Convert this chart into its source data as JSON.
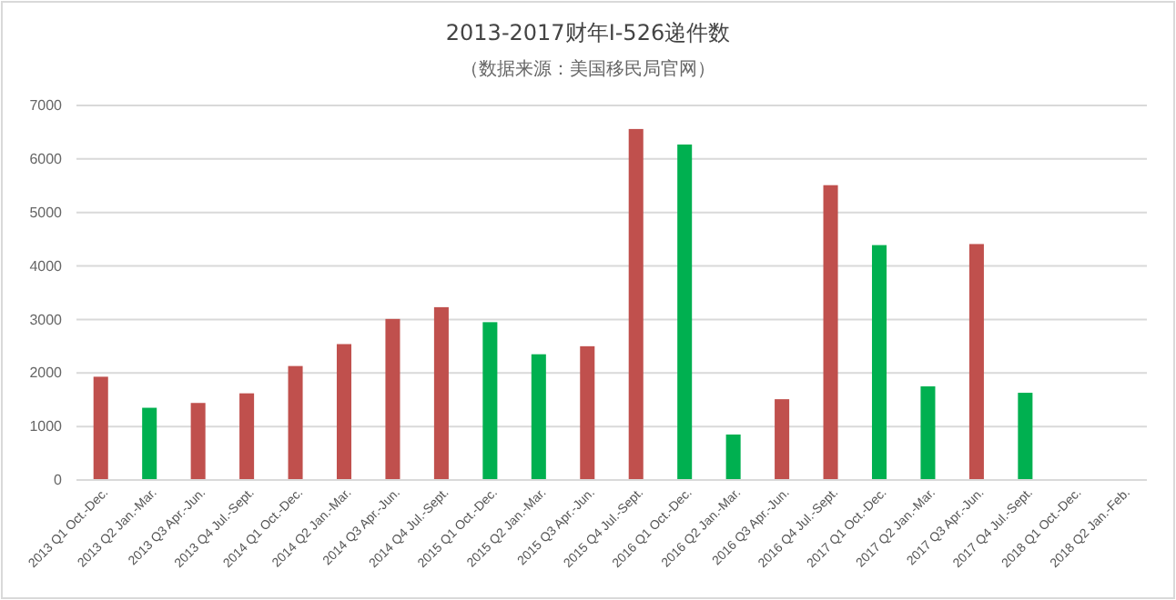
{
  "chart_data": {
    "type": "bar",
    "title": "2013-2017财年I-526递件数",
    "subtitle": "（数据来源：美国移民局官网）",
    "categories": [
      "2013 Q1 Oct.-Dec.",
      "2013 Q2 Jan.-Mar.",
      "2013 Q3 Apr.-Jun.",
      "2013 Q4 Jul.-Sept.",
      "2014 Q1 Oct.-Dec.",
      "2014 Q2 Jan.-Mar.",
      "2014 Q3 Apr.-Jun.",
      "2014 Q4 Jul.-Sept.",
      "2015 Q1 Oct.-Dec.",
      "2015 Q2 Jan.-Mar.",
      "2015 Q3 Apr.-Jun.",
      "2015 Q4 Jul.-Sept.",
      "2016 Q1 Oct.-Dec.",
      "2016 Q2 Jan.-Mar.",
      "2016 Q3 Apr.-Jun.",
      "2016 Q4 Jul.-Sept.",
      "2017 Q1 Oct.-Dec.",
      "2017 Q2 Jan.-Mar.",
      "2017 Q3 Apr.-Jun.",
      "2017 Q4 Jul.-Sept.",
      "2018 Q1 Oct.-Dec.",
      "2018 Q2 Jan.-Feb."
    ],
    "values": [
      1930,
      1350,
      1440,
      1620,
      2130,
      2540,
      3010,
      3230,
      2950,
      2350,
      2500,
      6560,
      6270,
      850,
      1510,
      5510,
      4390,
      1750,
      4410,
      1630,
      null,
      null
    ],
    "colors": [
      "#c0504d",
      "#00b050",
      "#c0504d",
      "#c0504d",
      "#c0504d",
      "#c0504d",
      "#c0504d",
      "#c0504d",
      "#00b050",
      "#00b050",
      "#c0504d",
      "#c0504d",
      "#00b050",
      "#00b050",
      "#c0504d",
      "#c0504d",
      "#00b050",
      "#00b050",
      "#c0504d",
      "#00b050",
      null,
      null
    ],
    "ylim": [
      0,
      7000
    ],
    "yticks": [
      0,
      1000,
      2000,
      3000,
      4000,
      5000,
      6000,
      7000
    ],
    "grid": "y"
  }
}
